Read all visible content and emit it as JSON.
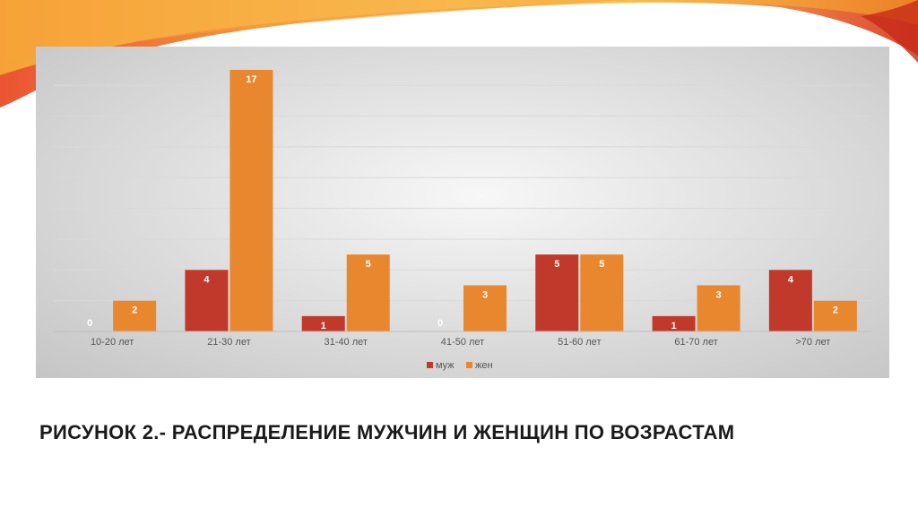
{
  "colors": {
    "male": "#c0392b",
    "female": "#e8872e",
    "label_text": "#ffffff",
    "axis": "#bfbfbf"
  },
  "chart_data": {
    "type": "bar",
    "categories": [
      "10-20 лет",
      "21-30 лет",
      "31-40 лет",
      "41-50 лет",
      "51-60 лет",
      "61-70 лет",
      ">70 лет"
    ],
    "series": [
      {
        "name": "муж",
        "values": [
          0,
          4,
          1,
          0,
          5,
          1,
          4
        ]
      },
      {
        "name": "жен",
        "values": [
          2,
          17,
          5,
          3,
          5,
          3,
          2
        ]
      }
    ],
    "ylim": [
      0,
      17
    ],
    "data_labels": true,
    "grid": true,
    "legend_position": "bottom-center",
    "title": "",
    "xlabel": "",
    "ylabel": ""
  },
  "caption": "РИСУНОК 2.- РАСПРЕДЕЛЕНИЕ МУЖЧИН И ЖЕНЩИН ПО ВОЗРАСТАМ"
}
